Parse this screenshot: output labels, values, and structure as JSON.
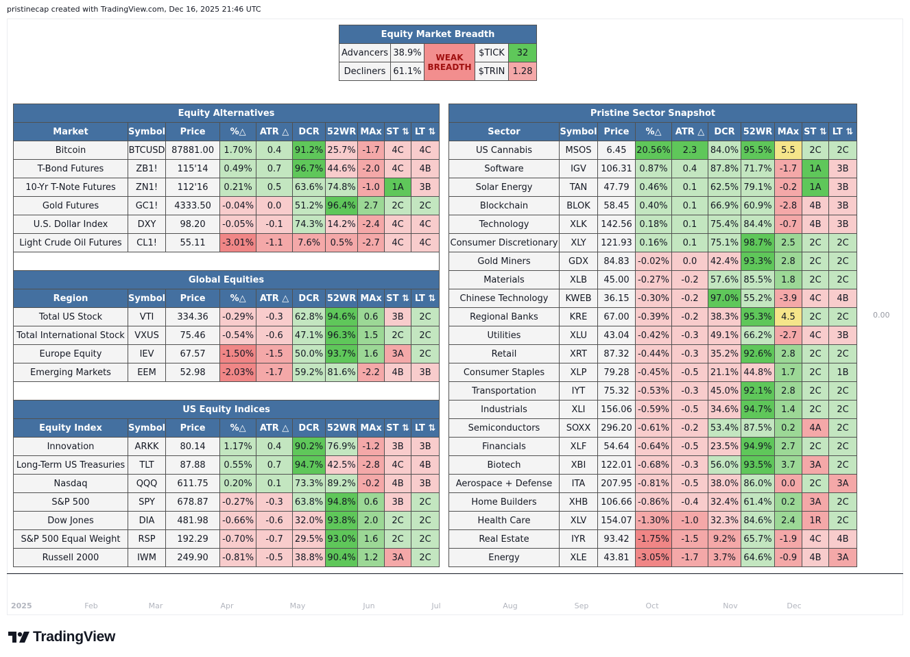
{
  "credit": "pristinecap created with TradingView.com, Dec 16, 2025 21:46 UTC",
  "brand": "TradingView",
  "scale_label": "0.00",
  "months": [
    "2025",
    "Feb",
    "Mar",
    "Apr",
    "May",
    "Jun",
    "Jul",
    "Aug",
    "Sep",
    "Oct",
    "Nov",
    "Dec"
  ],
  "breadth": {
    "title": "Equity Market Breadth",
    "advancers_label": "Advancers",
    "advancers_value": "38.9%",
    "decliners_label": "Decliners",
    "decliners_value": "61.1%",
    "status_line1": "WEAK",
    "status_line2": "BREADTH",
    "tick_label": "$TICK",
    "tick_value": "32",
    "trin_label": "$TRIN",
    "trin_value": "1.28"
  },
  "common_headers": [
    "Symbol",
    "Price",
    "%△",
    "ATR △",
    "DCR",
    "52WR",
    "MAx",
    "ST ⇅",
    "LT ⇅"
  ],
  "left_tables": [
    {
      "title": "Equity Alternatives",
      "first_header": "Market",
      "rows": [
        {
          "c": [
            "Bitcoin",
            "BTCUSD",
            "87881.00",
            "1.70%",
            "0.4",
            "91.2%",
            "25.7%",
            "-1.7",
            "4C",
            "4C"
          ],
          "k": [
            "p",
            "p",
            "p",
            "g1",
            "g1",
            "g3",
            "r1",
            "r2",
            "r1",
            "r1"
          ]
        },
        {
          "c": [
            "T-Bond Futures",
            "ZB1!",
            "115'14",
            "0.49%",
            "0.7",
            "96.7%",
            "44.6%",
            "-2.0",
            "4C",
            "4B"
          ],
          "k": [
            "p",
            "p",
            "p",
            "g1",
            "g1",
            "g3",
            "r1",
            "r2",
            "r1",
            "r1"
          ]
        },
        {
          "c": [
            "10-Yr T-Note Futures",
            "ZN1!",
            "112'16",
            "0.21%",
            "0.5",
            "63.6%",
            "74.8%",
            "-1.0",
            "1A",
            "3B"
          ],
          "k": [
            "p",
            "p",
            "p",
            "g1",
            "g1",
            "g1",
            "g1",
            "r2",
            "g3",
            "r1"
          ]
        },
        {
          "c": [
            "Gold Futures",
            "GC1!",
            "4333.50",
            "-0.04%",
            "0.0",
            "51.2%",
            "96.4%",
            "2.7",
            "2C",
            "2C"
          ],
          "k": [
            "p",
            "p",
            "p",
            "r1",
            "r1",
            "g1",
            "g3",
            "g2",
            "g1",
            "g1"
          ]
        },
        {
          "c": [
            "U.S. Dollar Index",
            "DXY",
            "98.20",
            "-0.05%",
            "-0.1",
            "74.3%",
            "14.2%",
            "-2.4",
            "4C",
            "4C"
          ],
          "k": [
            "p",
            "p",
            "p",
            "r1",
            "r1",
            "g1",
            "r1",
            "r2",
            "r1",
            "r1"
          ]
        },
        {
          "c": [
            "Light Crude Oil Futures",
            "CL1!",
            "55.11",
            "-3.01%",
            "-1.1",
            "7.6%",
            "0.5%",
            "-2.7",
            "4C",
            "4C"
          ],
          "k": [
            "p",
            "p",
            "p",
            "r3",
            "r2",
            "r2",
            "r2",
            "r2",
            "r1",
            "r1"
          ]
        }
      ]
    },
    {
      "title": "Global Equities",
      "first_header": "Region",
      "rows": [
        {
          "c": [
            "Total US Stock",
            "VTI",
            "334.36",
            "-0.29%",
            "-0.3",
            "62.8%",
            "94.6%",
            "0.6",
            "3B",
            "2C"
          ],
          "k": [
            "p",
            "p",
            "p",
            "r1",
            "r1",
            "g1",
            "g3",
            "g2",
            "r1",
            "g1"
          ]
        },
        {
          "c": [
            "Total International Stock",
            "VXUS",
            "75.46",
            "-0.54%",
            "-0.6",
            "47.1%",
            "96.3%",
            "1.5",
            "2C",
            "2C"
          ],
          "k": [
            "p",
            "p",
            "p",
            "r1",
            "r1",
            "g1",
            "g3",
            "g2",
            "g1",
            "g1"
          ]
        },
        {
          "c": [
            "Europe Equity",
            "IEV",
            "67.57",
            "-1.50%",
            "-1.5",
            "50.0%",
            "93.7%",
            "1.6",
            "3A",
            "2C"
          ],
          "k": [
            "p",
            "p",
            "p",
            "r3",
            "r2",
            "g1",
            "g3",
            "g2",
            "r2",
            "g1"
          ]
        },
        {
          "c": [
            "Emerging Markets",
            "EEM",
            "52.98",
            "-2.03%",
            "-1.7",
            "59.2%",
            "81.6%",
            "-2.2",
            "4B",
            "3B"
          ],
          "k": [
            "p",
            "p",
            "p",
            "r3",
            "r2",
            "g1",
            "g1",
            "r2",
            "r1",
            "r1"
          ]
        }
      ]
    },
    {
      "title": "US Equity Indices",
      "first_header": "Equity Index",
      "rows": [
        {
          "c": [
            "Innovation",
            "ARKK",
            "80.14",
            "1.17%",
            "0.4",
            "90.2%",
            "76.9%",
            "-1.2",
            "3B",
            "3B"
          ],
          "k": [
            "p",
            "p",
            "p",
            "g1",
            "g1",
            "g3",
            "g1",
            "r2",
            "r1",
            "r1"
          ]
        },
        {
          "c": [
            "Long-Term US Treasuries",
            "TLT",
            "87.88",
            "0.55%",
            "0.7",
            "94.7%",
            "42.5%",
            "-2.8",
            "4C",
            "4B"
          ],
          "k": [
            "p",
            "p",
            "p",
            "g1",
            "g1",
            "g3",
            "r1",
            "r2",
            "r1",
            "r1"
          ]
        },
        {
          "c": [
            "Nasdaq",
            "QQQ",
            "611.75",
            "0.20%",
            "0.1",
            "73.3%",
            "89.2%",
            "-0.2",
            "4B",
            "3B"
          ],
          "k": [
            "p",
            "p",
            "p",
            "g1",
            "g1",
            "g1",
            "g1",
            "r2",
            "r1",
            "r1"
          ]
        },
        {
          "c": [
            "S&P 500",
            "SPY",
            "678.87",
            "-0.27%",
            "-0.3",
            "63.8%",
            "94.8%",
            "0.6",
            "3B",
            "2C"
          ],
          "k": [
            "p",
            "p",
            "p",
            "r1",
            "r1",
            "g1",
            "g3",
            "g2",
            "r1",
            "g1"
          ]
        },
        {
          "c": [
            "Dow Jones",
            "DIA",
            "481.98",
            "-0.66%",
            "-0.6",
            "32.0%",
            "93.8%",
            "2.0",
            "2C",
            "2C"
          ],
          "k": [
            "p",
            "p",
            "p",
            "r1",
            "r1",
            "r1",
            "g3",
            "g2",
            "g1",
            "g1"
          ]
        },
        {
          "c": [
            "S&P 500 Equal Weight",
            "RSP",
            "192.29",
            "-0.70%",
            "-0.7",
            "29.5%",
            "93.0%",
            "1.6",
            "2C",
            "2C"
          ],
          "k": [
            "p",
            "p",
            "p",
            "r1",
            "r1",
            "r1",
            "g3",
            "g2",
            "g1",
            "g1"
          ]
        },
        {
          "c": [
            "Russell 2000",
            "IWM",
            "249.90",
            "-0.81%",
            "-0.5",
            "38.8%",
            "90.4%",
            "1.2",
            "3A",
            "2C"
          ],
          "k": [
            "p",
            "p",
            "p",
            "r1",
            "r1",
            "r1",
            "g3",
            "g2",
            "r2",
            "g1"
          ]
        }
      ]
    }
  ],
  "sector_table": {
    "title": "Pristine Sector Snapshot",
    "first_header": "Sector",
    "rows": [
      {
        "c": [
          "US Cannabis",
          "MSOS",
          "6.45",
          "20.56%",
          "2.3",
          "84.0%",
          "95.5%",
          "5.5",
          "2C",
          "2C"
        ],
        "k": [
          "p",
          "p",
          "p",
          "g3",
          "g3",
          "g1",
          "g3",
          "y1",
          "g1",
          "g1"
        ]
      },
      {
        "c": [
          "Software",
          "IGV",
          "106.31",
          "0.87%",
          "0.4",
          "87.8%",
          "71.7%",
          "-1.7",
          "1A",
          "3B"
        ],
        "k": [
          "p",
          "p",
          "p",
          "g1",
          "g1",
          "g1",
          "g1",
          "r2",
          "g3",
          "r1"
        ]
      },
      {
        "c": [
          "Solar Energy",
          "TAN",
          "47.79",
          "0.46%",
          "0.1",
          "62.5%",
          "79.1%",
          "-0.2",
          "1A",
          "3B"
        ],
        "k": [
          "p",
          "p",
          "p",
          "g1",
          "g1",
          "g1",
          "g1",
          "r2",
          "g3",
          "r1"
        ]
      },
      {
        "c": [
          "Blockchain",
          "BLOK",
          "58.45",
          "0.40%",
          "0.1",
          "66.9%",
          "60.9%",
          "-2.8",
          "4B",
          "3B"
        ],
        "k": [
          "p",
          "p",
          "p",
          "g1",
          "g1",
          "g1",
          "g1",
          "r2",
          "r1",
          "r1"
        ]
      },
      {
        "c": [
          "Technology",
          "XLK",
          "142.56",
          "0.18%",
          "0.1",
          "75.4%",
          "84.4%",
          "-0.7",
          "4B",
          "3B"
        ],
        "k": [
          "p",
          "p",
          "p",
          "g1",
          "g1",
          "g1",
          "g1",
          "r2",
          "r1",
          "r1"
        ]
      },
      {
        "c": [
          "Consumer Discretionary",
          "XLY",
          "121.93",
          "0.16%",
          "0.1",
          "75.1%",
          "98.7%",
          "2.5",
          "2C",
          "2C"
        ],
        "k": [
          "p",
          "p",
          "p",
          "g1",
          "g1",
          "g1",
          "g3",
          "g2",
          "g1",
          "g1"
        ]
      },
      {
        "c": [
          "Gold Miners",
          "GDX",
          "84.83",
          "-0.02%",
          "0.0",
          "42.4%",
          "93.3%",
          "2.8",
          "2C",
          "2C"
        ],
        "k": [
          "p",
          "p",
          "p",
          "r1",
          "r1",
          "r1",
          "g3",
          "g2",
          "g1",
          "g1"
        ]
      },
      {
        "c": [
          "Materials",
          "XLB",
          "45.00",
          "-0.27%",
          "-0.2",
          "57.6%",
          "85.5%",
          "1.8",
          "2C",
          "2C"
        ],
        "k": [
          "p",
          "p",
          "p",
          "r1",
          "r1",
          "g1",
          "g1",
          "g2",
          "g1",
          "g1"
        ]
      },
      {
        "c": [
          "Chinese Technology",
          "KWEB",
          "36.15",
          "-0.30%",
          "-0.2",
          "97.0%",
          "55.2%",
          "-3.9",
          "4C",
          "4B"
        ],
        "k": [
          "p",
          "p",
          "p",
          "r1",
          "r1",
          "g3",
          "g1",
          "r2",
          "r1",
          "r1"
        ]
      },
      {
        "c": [
          "Regional Banks",
          "KRE",
          "67.00",
          "-0.39%",
          "-0.2",
          "38.3%",
          "95.3%",
          "4.5",
          "2C",
          "2C"
        ],
        "k": [
          "p",
          "p",
          "p",
          "r1",
          "r1",
          "r1",
          "g3",
          "y1",
          "g1",
          "g1"
        ]
      },
      {
        "c": [
          "Utilities",
          "XLU",
          "43.04",
          "-0.42%",
          "-0.3",
          "49.1%",
          "66.2%",
          "-2.7",
          "4C",
          "3B"
        ],
        "k": [
          "p",
          "p",
          "p",
          "r1",
          "r1",
          "r1",
          "g1",
          "r2",
          "r1",
          "r1"
        ]
      },
      {
        "c": [
          "Retail",
          "XRT",
          "87.32",
          "-0.44%",
          "-0.3",
          "35.2%",
          "92.6%",
          "2.8",
          "2C",
          "2C"
        ],
        "k": [
          "p",
          "p",
          "p",
          "r1",
          "r1",
          "r1",
          "g3",
          "g2",
          "g1",
          "g1"
        ]
      },
      {
        "c": [
          "Consumer Staples",
          "XLP",
          "79.28",
          "-0.45%",
          "-0.5",
          "21.1%",
          "44.8%",
          "1.7",
          "2C",
          "1B"
        ],
        "k": [
          "p",
          "p",
          "p",
          "r1",
          "r1",
          "r1",
          "r1",
          "g2",
          "g1",
          "g1"
        ]
      },
      {
        "c": [
          "Transportation",
          "IYT",
          "75.32",
          "-0.53%",
          "-0.3",
          "45.0%",
          "92.1%",
          "2.8",
          "2C",
          "2C"
        ],
        "k": [
          "p",
          "p",
          "p",
          "r1",
          "r1",
          "r1",
          "g3",
          "g2",
          "g1",
          "g1"
        ]
      },
      {
        "c": [
          "Industrials",
          "XLI",
          "156.06",
          "-0.59%",
          "-0.5",
          "34.6%",
          "94.7%",
          "1.4",
          "2C",
          "2C"
        ],
        "k": [
          "p",
          "p",
          "p",
          "r1",
          "r1",
          "r1",
          "g3",
          "g2",
          "g1",
          "g1"
        ]
      },
      {
        "c": [
          "Semiconductors",
          "SOXX",
          "296.20",
          "-0.61%",
          "-0.2",
          "53.4%",
          "87.5%",
          "0.2",
          "4A",
          "2C"
        ],
        "k": [
          "p",
          "p",
          "p",
          "r1",
          "r1",
          "g1",
          "g1",
          "g2",
          "r2",
          "g1"
        ]
      },
      {
        "c": [
          "Financials",
          "XLF",
          "54.64",
          "-0.64%",
          "-0.5",
          "23.5%",
          "94.9%",
          "2.7",
          "2C",
          "2C"
        ],
        "k": [
          "p",
          "p",
          "p",
          "r1",
          "r1",
          "r1",
          "g3",
          "g2",
          "g1",
          "g1"
        ]
      },
      {
        "c": [
          "Biotech",
          "XBI",
          "122.01",
          "-0.68%",
          "-0.3",
          "56.0%",
          "93.5%",
          "3.7",
          "3A",
          "2C"
        ],
        "k": [
          "p",
          "p",
          "p",
          "r1",
          "r1",
          "g1",
          "g3",
          "g2",
          "r2",
          "g1"
        ]
      },
      {
        "c": [
          "Aerospace + Defense",
          "ITA",
          "207.95",
          "-0.81%",
          "-0.5",
          "38.0%",
          "86.0%",
          "0.0",
          "2C",
          "3A"
        ],
        "k": [
          "p",
          "p",
          "p",
          "r1",
          "r1",
          "r1",
          "g1",
          "r2",
          "g1",
          "r2"
        ]
      },
      {
        "c": [
          "Home Builders",
          "XHB",
          "106.66",
          "-0.86%",
          "-0.4",
          "32.4%",
          "61.4%",
          "0.2",
          "3A",
          "2C"
        ],
        "k": [
          "p",
          "p",
          "p",
          "r1",
          "r1",
          "r1",
          "g1",
          "g2",
          "r2",
          "g1"
        ]
      },
      {
        "c": [
          "Health Care",
          "XLV",
          "154.07",
          "-1.30%",
          "-1.0",
          "32.3%",
          "84.6%",
          "2.4",
          "1R",
          "2C"
        ],
        "k": [
          "p",
          "p",
          "p",
          "r2",
          "r2",
          "r1",
          "g1",
          "g2",
          "r2",
          "g1"
        ]
      },
      {
        "c": [
          "Real Estate",
          "IYR",
          "93.42",
          "-1.75%",
          "-1.5",
          "9.2%",
          "65.7%",
          "-1.9",
          "4C",
          "4B"
        ],
        "k": [
          "p",
          "p",
          "p",
          "r3",
          "r2",
          "r2",
          "g1",
          "r2",
          "r1",
          "r1"
        ]
      },
      {
        "c": [
          "Energy",
          "XLE",
          "43.81",
          "-3.05%",
          "-1.7",
          "3.7%",
          "64.6%",
          "-0.9",
          "4B",
          "3A"
        ],
        "k": [
          "p",
          "p",
          "p",
          "r3",
          "r2",
          "r2",
          "g1",
          "r2",
          "r1",
          "r2"
        ]
      }
    ]
  }
}
